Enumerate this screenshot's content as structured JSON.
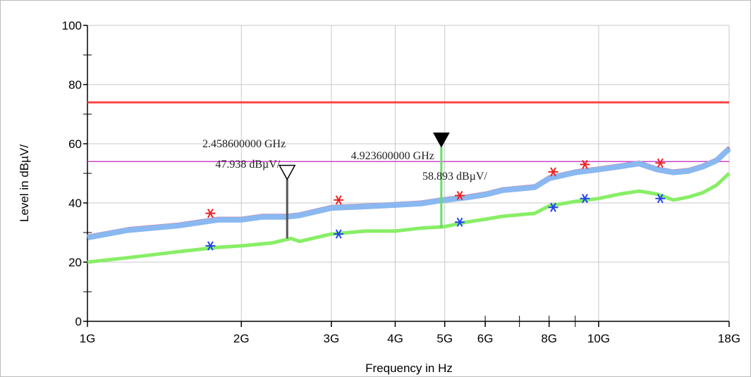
{
  "chart_data": {
    "type": "line",
    "xlabel": "Frequency in Hz",
    "ylabel": "Level in dBµV/",
    "x_scale": "log",
    "x_unit": "Hz",
    "xlim": [
      1000000000.0,
      18000000000.0
    ],
    "ylim": [
      0,
      100
    ],
    "y_major_ticks": [
      0,
      20,
      40,
      60,
      80,
      100
    ],
    "y_minor_ticks": [
      10,
      30,
      50,
      70,
      90
    ],
    "x_tick_labels": [
      {
        "value": 1000000000.0,
        "label": "1G"
      },
      {
        "value": 2000000000.0,
        "label": "2G"
      },
      {
        "value": 3000000000.0,
        "label": "3G"
      },
      {
        "value": 4000000000.0,
        "label": "4G"
      },
      {
        "value": 5000000000.0,
        "label": "5G"
      },
      {
        "value": 6000000000.0,
        "label": "6G"
      },
      {
        "value": 8000000000.0,
        "label": "8G"
      },
      {
        "value": 10000000000.0,
        "label": "10G"
      },
      {
        "value": 18000000000.0,
        "label": "18G"
      }
    ],
    "x_gridlines": [
      1000000000.0,
      2000000000.0,
      3000000000.0,
      4000000000.0,
      5000000000.0,
      10000000000.0
    ],
    "x_minor_ticks": [
      6000000000.0,
      7000000000.0,
      8000000000.0,
      9000000000.0
    ],
    "grid": true,
    "limit_lines": [
      {
        "value": 74,
        "color": "#ff4444",
        "width": 3
      },
      {
        "value": 54,
        "color": "#cc44cc",
        "width": 1.5
      }
    ],
    "series": [
      {
        "color": "#8ab8f0",
        "peak_color": "#e8466a",
        "x": [
          1000000000.0,
          1200000000.0,
          1500000000.0,
          1800000000.0,
          2000000000.0,
          2200000000.0,
          2450000000.0,
          2600000000.0,
          3000000000.0,
          3500000000.0,
          4000000000.0,
          4500000000.0,
          4900000000.0,
          5500000000.0,
          6000000000.0,
          6500000000.0,
          7000000000.0,
          7500000000.0,
          8000000000.0,
          9000000000.0,
          10000000000.0,
          11000000000.0,
          12000000000.0,
          13000000000.0,
          14000000000.0,
          15000000000.0,
          16000000000.0,
          17000000000.0,
          18000000000.0
        ],
        "values": [
          28.5,
          31,
          32.5,
          34.5,
          34.5,
          35.5,
          35.5,
          36,
          38.5,
          39,
          39.5,
          40,
          41,
          42,
          43,
          44.5,
          45,
          45.5,
          48.5,
          50.5,
          51.5,
          52.5,
          53.5,
          51.5,
          50.5,
          51,
          52.5,
          54.5,
          58.5
        ]
      },
      {
        "color": "#88ee66",
        "shadow_color": "#444444",
        "x": [
          1000000000.0,
          1200000000.0,
          1500000000.0,
          1800000000.0,
          2000000000.0,
          2300000000.0,
          2500000000.0,
          2600000000.0,
          3000000000.0,
          3500000000.0,
          4000000000.0,
          4500000000.0,
          5000000000.0,
          5500000000.0,
          6000000000.0,
          6500000000.0,
          7000000000.0,
          7500000000.0,
          8000000000.0,
          9000000000.0,
          10000000000.0,
          11000000000.0,
          12000000000.0,
          13000000000.0,
          14000000000.0,
          15000000000.0,
          16000000000.0,
          17000000000.0,
          18000000000.0
        ],
        "values": [
          20,
          21.5,
          23.5,
          25,
          25.5,
          26.5,
          28,
          27,
          29.5,
          30.5,
          30.5,
          31.5,
          32,
          33.5,
          34.5,
          35.5,
          36,
          36.5,
          39,
          40.5,
          41.5,
          43,
          44,
          43,
          41,
          42,
          43.5,
          46,
          50
        ]
      }
    ],
    "peak_points": [
      {
        "x": 1740000000.0,
        "y": 36.5
      },
      {
        "x": 3100000000.0,
        "y": 41
      },
      {
        "x": 5350000000.0,
        "y": 42.5
      },
      {
        "x": 8150000000.0,
        "y": 50.5
      },
      {
        "x": 9400000000.0,
        "y": 53
      },
      {
        "x": 13200000000.0,
        "y": 53.5
      }
    ],
    "average_points": [
      {
        "x": 1740000000.0,
        "y": 25.5
      },
      {
        "x": 3100000000.0,
        "y": 29.5
      },
      {
        "x": 5350000000.0,
        "y": 33.5
      },
      {
        "x": 8150000000.0,
        "y": 38.5
      },
      {
        "x": 9400000000.0,
        "y": 41.5
      },
      {
        "x": 13200000000.0,
        "y": 41.5
      }
    ],
    "spikes": [
      {
        "x": 2458600000.0,
        "y_top": 47.9,
        "y_bottom": 28,
        "color": "#555555"
      },
      {
        "x": 4923600000.0,
        "y_top": 58.9,
        "y_bottom": 31.5,
        "color": "#66dd66"
      }
    ],
    "markers": [
      {
        "x": 2458600000.0,
        "y": 47.938,
        "style": "open",
        "freq_text": "2.458600000 GHz",
        "level_text": "47.938 dBµV/"
      },
      {
        "x": 4923600000.0,
        "y": 58.893,
        "style": "filled",
        "freq_text": "4.923600000 GHz",
        "level_text": "58.893 dBµV/"
      }
    ]
  }
}
